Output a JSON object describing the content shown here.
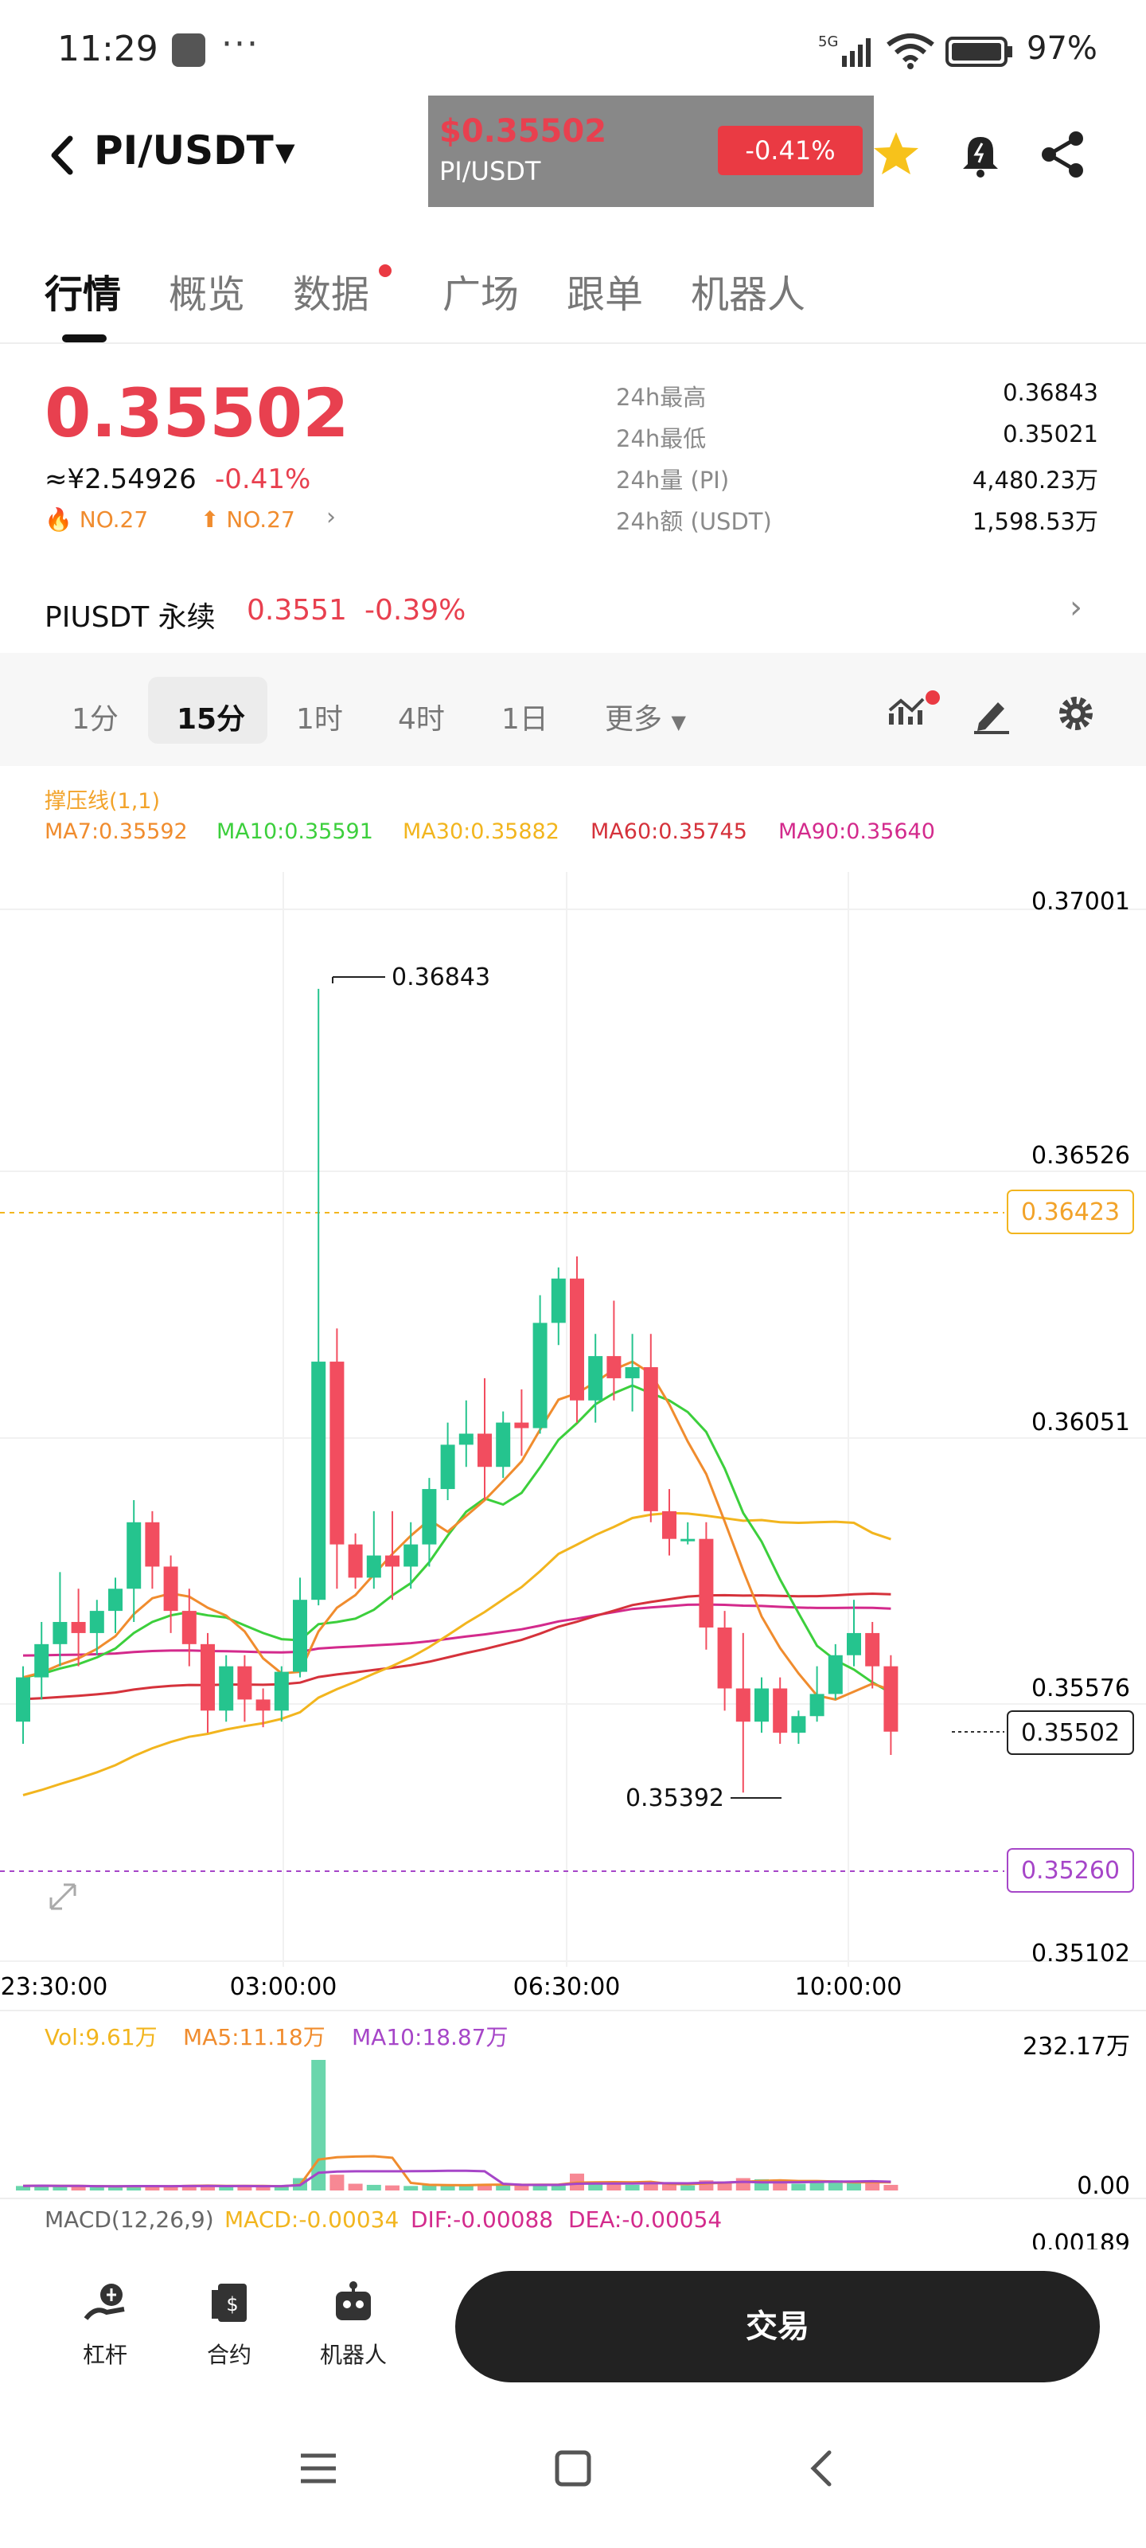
{
  "status_bar": {
    "time": "11:29",
    "dots": "···",
    "network": "5G",
    "battery": "97%"
  },
  "header": {
    "pair": "PI/USDT",
    "float_price": "$0.35502",
    "float_pair": "PI/USDT",
    "float_change": "-0.41%"
  },
  "tabs": [
    "行情",
    "概览",
    "数据",
    "广场",
    "跟单",
    "机器人"
  ],
  "price": {
    "last": "0.35502",
    "cny": "≈¥2.54926",
    "change": "-0.41%",
    "rank_hot": "NO.27",
    "rank_up": "NO.27"
  },
  "stats": [
    {
      "label": "24h最高",
      "value": "0.36843"
    },
    {
      "label": "24h最低",
      "value": "0.35021"
    },
    {
      "label": "24h量 (PI)",
      "value": "4,480.23万"
    },
    {
      "label": "24h额 (USDT)",
      "value": "1,598.53万"
    }
  ],
  "perp": {
    "name": "PIUSDT 永续",
    "price": "0.3551",
    "change": "-0.39%"
  },
  "intervals": [
    "1分",
    "15分",
    "1时",
    "4时",
    "1日",
    "更多"
  ],
  "legend": {
    "sr": "撑压线(1,1)",
    "ma7": "MA7:0.35592",
    "ma10": "MA10:0.35591",
    "ma30": "MA30:0.35882",
    "ma60": "MA60:0.35745",
    "ma90": "MA90:0.35640",
    "vol": "Vol:9.61万",
    "vma5": "MA5:11.18万",
    "vma10": "MA10:18.87万",
    "macd_name": "MACD(12,26,9)",
    "macd": "MACD:-0.00034",
    "dif": "DIF:-0.00088",
    "dea": "DEA:-0.00054"
  },
  "chart_data": {
    "type": "candlestick",
    "y_ticks": [
      "0.37001",
      "0.36526",
      "0.36051",
      "0.35576",
      "0.35102"
    ],
    "x_ticks": [
      "23:30:00",
      "03:00:00",
      "06:30:00",
      "10:00:00"
    ],
    "high_label": "0.36843",
    "low_label": "0.35392",
    "resistance": "0.36423",
    "support": "0.35260",
    "current": "0.35502",
    "vol_top": "232.17万",
    "vol_zero": "0.00",
    "macd_top": "0.00189",
    "ohlc": [
      [
        0.3552,
        0.3562,
        0.3548,
        0.356
      ],
      [
        0.356,
        0.357,
        0.3556,
        0.3566
      ],
      [
        0.3566,
        0.3579,
        0.3562,
        0.357
      ],
      [
        0.357,
        0.3576,
        0.3562,
        0.3568
      ],
      [
        0.3568,
        0.3574,
        0.3564,
        0.3572
      ],
      [
        0.3572,
        0.3578,
        0.3568,
        0.3576
      ],
      [
        0.3576,
        0.3592,
        0.357,
        0.3588
      ],
      [
        0.3588,
        0.359,
        0.3576,
        0.358
      ],
      [
        0.358,
        0.3582,
        0.3568,
        0.3572
      ],
      [
        0.3572,
        0.3576,
        0.3562,
        0.3566
      ],
      [
        0.3566,
        0.3568,
        0.355,
        0.3554
      ],
      [
        0.3554,
        0.3564,
        0.3552,
        0.3562
      ],
      [
        0.3562,
        0.3564,
        0.3552,
        0.3556
      ],
      [
        0.3556,
        0.3558,
        0.3551,
        0.3554
      ],
      [
        0.3554,
        0.3562,
        0.3552,
        0.3561
      ],
      [
        0.3561,
        0.3578,
        0.356,
        0.3574
      ],
      [
        0.3574,
        0.36843,
        0.3573,
        0.3617
      ],
      [
        0.3617,
        0.3623,
        0.3576,
        0.3584
      ],
      [
        0.3584,
        0.3586,
        0.3576,
        0.3578
      ],
      [
        0.3578,
        0.359,
        0.3576,
        0.3582
      ],
      [
        0.3582,
        0.359,
        0.3574,
        0.358
      ],
      [
        0.358,
        0.3588,
        0.3576,
        0.3584
      ],
      [
        0.3584,
        0.3596,
        0.358,
        0.3594
      ],
      [
        0.3594,
        0.3606,
        0.3592,
        0.3602
      ],
      [
        0.3602,
        0.361,
        0.3598,
        0.3604
      ],
      [
        0.3604,
        0.3614,
        0.3592,
        0.3598
      ],
      [
        0.3598,
        0.3608,
        0.3596,
        0.3606
      ],
      [
        0.3606,
        0.3612,
        0.36,
        0.3605
      ],
      [
        0.3605,
        0.3629,
        0.3604,
        0.3624
      ],
      [
        0.3624,
        0.3634,
        0.362,
        0.3632
      ],
      [
        0.3632,
        0.3636,
        0.3606,
        0.361
      ],
      [
        0.361,
        0.3622,
        0.3606,
        0.3618
      ],
      [
        0.3618,
        0.3628,
        0.361,
        0.3614
      ],
      [
        0.3614,
        0.3622,
        0.3608,
        0.3616
      ],
      [
        0.3616,
        0.3622,
        0.3588,
        0.359
      ],
      [
        0.359,
        0.3594,
        0.3582,
        0.3585
      ],
      [
        0.3585,
        0.3588,
        0.3584,
        0.3585
      ],
      [
        0.3585,
        0.3588,
        0.3565,
        0.3569
      ],
      [
        0.3569,
        0.3572,
        0.3554,
        0.3558
      ],
      [
        0.3558,
        0.3568,
        0.35392,
        0.3552
      ],
      [
        0.3552,
        0.356,
        0.355,
        0.3558
      ],
      [
        0.3558,
        0.356,
        0.3548,
        0.355
      ],
      [
        0.355,
        0.3554,
        0.3548,
        0.3553
      ],
      [
        0.3553,
        0.3562,
        0.3552,
        0.3557
      ],
      [
        0.3557,
        0.3566,
        0.3556,
        0.3564
      ],
      [
        0.3564,
        0.3574,
        0.3562,
        0.3568
      ],
      [
        0.3568,
        0.357,
        0.3558,
        0.3562
      ],
      [
        0.3562,
        0.3564,
        0.3546,
        0.35502
      ]
    ],
    "volume": [
      8,
      9,
      7,
      8,
      6,
      7,
      9,
      8,
      7,
      10,
      9,
      7,
      8,
      6,
      7,
      22,
      232,
      28,
      12,
      10,
      9,
      8,
      11,
      10,
      9,
      12,
      10,
      9,
      11,
      10,
      30,
      12,
      11,
      10,
      14,
      12,
      9,
      18,
      16,
      22,
      20,
      14,
      12,
      16,
      18,
      13,
      15,
      10
    ]
  }
}
